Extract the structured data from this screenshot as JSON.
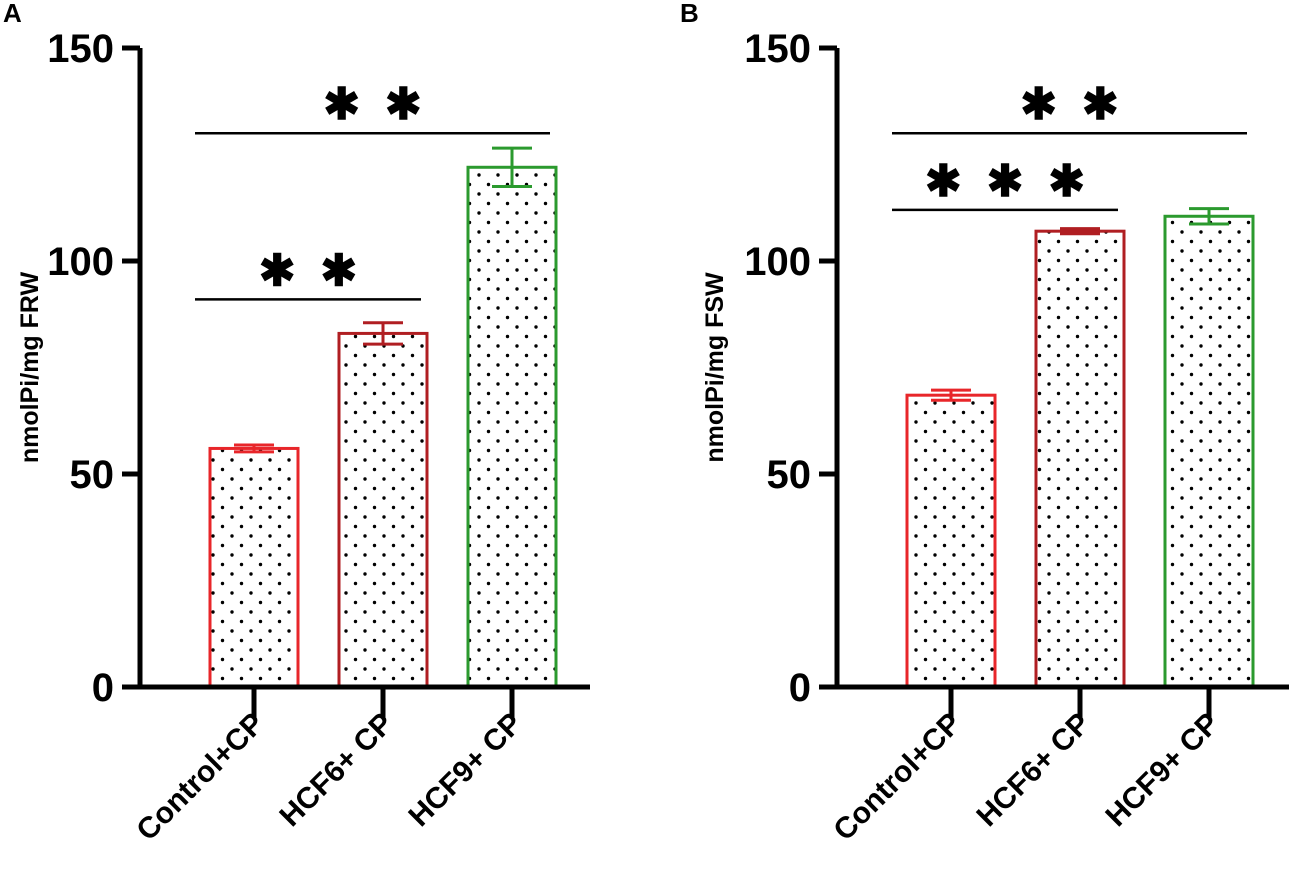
{
  "chart_data": [
    {
      "panel": "A",
      "type": "bar",
      "categories": [
        "Control+CP",
        "HCF6+ CP",
        "HCF9+ CP"
      ],
      "values": [
        56,
        83,
        122
      ],
      "errors": [
        0.8,
        2.5,
        4.5
      ],
      "colors": [
        "#e8262a",
        "#b01e22",
        "#2b9a2e"
      ],
      "ylabel": "nmolPi/mg FRW",
      "ylim": [
        0,
        150
      ],
      "yticks": [
        "0",
        "50",
        "100",
        "150"
      ],
      "significance": [
        {
          "from": 0,
          "to": 2,
          "label": "**",
          "y": 130
        },
        {
          "from": 0,
          "to": 1,
          "label": "**",
          "y": 91
        }
      ]
    },
    {
      "panel": "B",
      "type": "bar",
      "categories": [
        "Control+CP",
        "HCF6+ CP",
        "HCF9+ CP"
      ],
      "values": [
        68.5,
        107,
        110.5
      ],
      "errors": [
        1.2,
        0.6,
        1.8
      ],
      "colors": [
        "#e8262a",
        "#b01e22",
        "#2b9a2e"
      ],
      "ylabel": "nmolPi/mg FSW",
      "ylim": [
        0,
        150
      ],
      "yticks": [
        "0",
        "50",
        "100",
        "150"
      ],
      "significance": [
        {
          "from": 0,
          "to": 2,
          "label": "**",
          "y": 130
        },
        {
          "from": 0,
          "to": 1,
          "label": "***",
          "y": 112
        }
      ]
    }
  ]
}
